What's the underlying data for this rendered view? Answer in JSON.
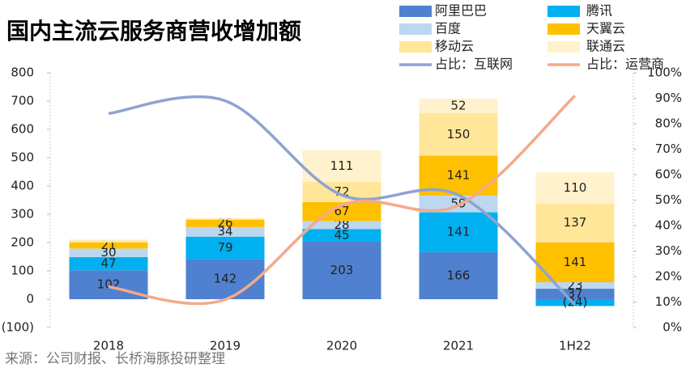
{
  "chart_data": {
    "type": "stacked-bar-line",
    "title": "国内主流云服务商营收增加额",
    "source": "来源：公司财报、长桥海豚投研整理",
    "categories": [
      "2018",
      "2019",
      "2020",
      "2021",
      "1H22"
    ],
    "series": [
      {
        "name": "阿里巴巴",
        "color": "#4f81d0",
        "values": [
          102,
          142,
          203,
          166,
          37
        ],
        "value_labels": [
          102,
          142,
          203,
          166,
          37
        ]
      },
      {
        "name": "腾讯",
        "color": "#00b0f0",
        "values": [
          47,
          79,
          45,
          141,
          -24
        ],
        "value_labels": [
          47,
          79,
          45,
          141,
          "(24)"
        ]
      },
      {
        "name": "百度",
        "color": "#bdd7ee",
        "values": [
          30,
          34,
          28,
          59,
          23
        ],
        "value_labels": [
          30,
          34,
          28,
          59,
          23
        ]
      },
      {
        "name": "天翼云",
        "color": "#ffc000",
        "values": [
          21,
          26,
          67,
          141,
          141
        ],
        "value_labels": [
          21,
          26,
          67,
          141,
          141
        ]
      },
      {
        "name": "移动云",
        "color": "#ffe699",
        "values": [
          7,
          4,
          72,
          150,
          137
        ],
        "value_labels": [
          null,
          null,
          72,
          150,
          137
        ]
      },
      {
        "name": "联通云",
        "color": "#fff2cc",
        "values": [
          5,
          2,
          111,
          52,
          110
        ],
        "value_labels": [
          null,
          null,
          111,
          52,
          110
        ]
      },
      {
        "name": "占比：互联网",
        "color": "#8fa3d1",
        "axis": "y2",
        "line": true,
        "values": [
          84,
          89,
          52,
          52,
          9
        ]
      },
      {
        "name": "占比：运营商",
        "color": "#f4a98a",
        "axis": "y2",
        "line": true,
        "values": [
          16,
          11,
          48,
          48,
          91
        ]
      }
    ],
    "ylim": [
      -100,
      800
    ],
    "yticks": [
      {
        "value": -100,
        "label": "(100)"
      },
      0,
      100,
      200,
      300,
      400,
      500,
      600,
      700,
      800
    ],
    "y2lim": [
      0,
      100
    ],
    "y2ticks": [
      {
        "value": 0,
        "label": "0%"
      },
      {
        "value": 10,
        "label": "10%"
      },
      {
        "value": 20,
        "label": "20%"
      },
      {
        "value": 30,
        "label": "30%"
      },
      {
        "value": 40,
        "label": "40%"
      },
      {
        "value": 50,
        "label": "50%"
      },
      {
        "value": 60,
        "label": "60%"
      },
      {
        "value": 70,
        "label": "70%"
      },
      {
        "value": 80,
        "label": "80%"
      },
      {
        "value": 90,
        "label": "90%"
      },
      {
        "value": 100,
        "label": "100%"
      }
    ]
  }
}
